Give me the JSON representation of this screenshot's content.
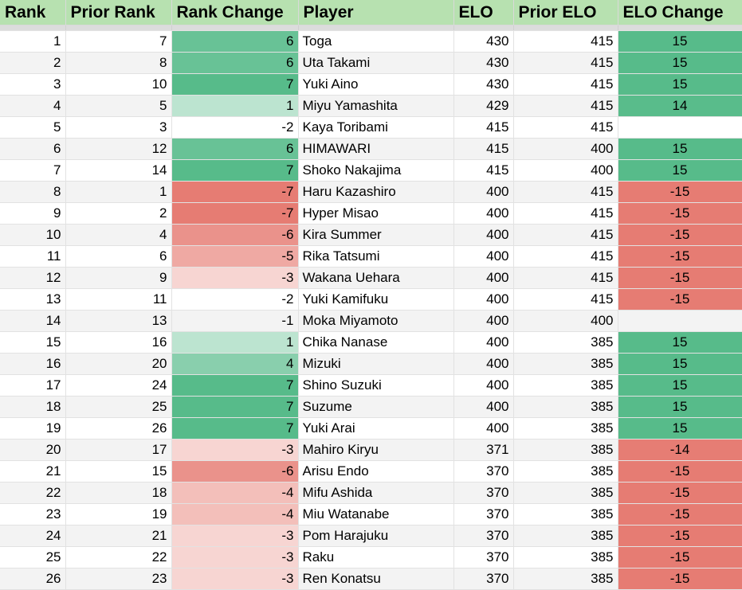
{
  "headers": {
    "rank": "Rank",
    "prior_rank": "Prior Rank",
    "rank_change": "Rank Change",
    "player": "Player",
    "elo": "ELO",
    "prior_elo": "Prior ELO",
    "elo_change": "ELO Change"
  },
  "colors": {
    "header_bg": "#b7e1b0",
    "positive": "#57bb8a",
    "negative": "#e67c73",
    "row_even": "#f3f3f3"
  },
  "rows": [
    {
      "rank": "1",
      "prior_rank": "7",
      "rank_change": "6",
      "player": "Toga",
      "elo": "430",
      "prior_elo": "415",
      "elo_change": "15"
    },
    {
      "rank": "2",
      "prior_rank": "8",
      "rank_change": "6",
      "player": "Uta Takami",
      "elo": "430",
      "prior_elo": "415",
      "elo_change": "15"
    },
    {
      "rank": "3",
      "prior_rank": "10",
      "rank_change": "7",
      "player": "Yuki Aino",
      "elo": "430",
      "prior_elo": "415",
      "elo_change": "15"
    },
    {
      "rank": "4",
      "prior_rank": "5",
      "rank_change": "1",
      "player": "Miyu Yamashita",
      "elo": "429",
      "prior_elo": "415",
      "elo_change": "14"
    },
    {
      "rank": "5",
      "prior_rank": "3",
      "rank_change": "-2",
      "player": "Kaya Toribami",
      "elo": "415",
      "prior_elo": "415",
      "elo_change": ""
    },
    {
      "rank": "6",
      "prior_rank": "12",
      "rank_change": "6",
      "player": "HIMAWARI",
      "elo": "415",
      "prior_elo": "400",
      "elo_change": "15"
    },
    {
      "rank": "7",
      "prior_rank": "14",
      "rank_change": "7",
      "player": "Shoko Nakajima",
      "elo": "415",
      "prior_elo": "400",
      "elo_change": "15"
    },
    {
      "rank": "8",
      "prior_rank": "1",
      "rank_change": "-7",
      "player": "Haru Kazashiro",
      "elo": "400",
      "prior_elo": "415",
      "elo_change": "-15"
    },
    {
      "rank": "9",
      "prior_rank": "2",
      "rank_change": "-7",
      "player": "Hyper Misao",
      "elo": "400",
      "prior_elo": "415",
      "elo_change": "-15"
    },
    {
      "rank": "10",
      "prior_rank": "4",
      "rank_change": "-6",
      "player": "Kira Summer",
      "elo": "400",
      "prior_elo": "415",
      "elo_change": "-15"
    },
    {
      "rank": "11",
      "prior_rank": "6",
      "rank_change": "-5",
      "player": "Rika Tatsumi",
      "elo": "400",
      "prior_elo": "415",
      "elo_change": "-15"
    },
    {
      "rank": "12",
      "prior_rank": "9",
      "rank_change": "-3",
      "player": "Wakana Uehara",
      "elo": "400",
      "prior_elo": "415",
      "elo_change": "-15"
    },
    {
      "rank": "13",
      "prior_rank": "11",
      "rank_change": "-2",
      "player": "Yuki Kamifuku",
      "elo": "400",
      "prior_elo": "415",
      "elo_change": "-15"
    },
    {
      "rank": "14",
      "prior_rank": "13",
      "rank_change": "-1",
      "player": "Moka Miyamoto",
      "elo": "400",
      "prior_elo": "400",
      "elo_change": ""
    },
    {
      "rank": "15",
      "prior_rank": "16",
      "rank_change": "1",
      "player": "Chika Nanase",
      "elo": "400",
      "prior_elo": "385",
      "elo_change": "15"
    },
    {
      "rank": "16",
      "prior_rank": "20",
      "rank_change": "4",
      "player": "Mizuki",
      "elo": "400",
      "prior_elo": "385",
      "elo_change": "15"
    },
    {
      "rank": "17",
      "prior_rank": "24",
      "rank_change": "7",
      "player": "Shino Suzuki",
      "elo": "400",
      "prior_elo": "385",
      "elo_change": "15"
    },
    {
      "rank": "18",
      "prior_rank": "25",
      "rank_change": "7",
      "player": "Suzume",
      "elo": "400",
      "prior_elo": "385",
      "elo_change": "15"
    },
    {
      "rank": "19",
      "prior_rank": "26",
      "rank_change": "7",
      "player": "Yuki Arai",
      "elo": "400",
      "prior_elo": "385",
      "elo_change": "15"
    },
    {
      "rank": "20",
      "prior_rank": "17",
      "rank_change": "-3",
      "player": "Mahiro Kiryu",
      "elo": "371",
      "prior_elo": "385",
      "elo_change": "-14"
    },
    {
      "rank": "21",
      "prior_rank": "15",
      "rank_change": "-6",
      "player": "Arisu Endo",
      "elo": "370",
      "prior_elo": "385",
      "elo_change": "-15"
    },
    {
      "rank": "22",
      "prior_rank": "18",
      "rank_change": "-4",
      "player": "Mifu Ashida",
      "elo": "370",
      "prior_elo": "385",
      "elo_change": "-15"
    },
    {
      "rank": "23",
      "prior_rank": "19",
      "rank_change": "-4",
      "player": "Miu Watanabe",
      "elo": "370",
      "prior_elo": "385",
      "elo_change": "-15"
    },
    {
      "rank": "24",
      "prior_rank": "21",
      "rank_change": "-3",
      "player": "Pom Harajuku",
      "elo": "370",
      "prior_elo": "385",
      "elo_change": "-15"
    },
    {
      "rank": "25",
      "prior_rank": "22",
      "rank_change": "-3",
      "player": "Raku",
      "elo": "370",
      "prior_elo": "385",
      "elo_change": "-15"
    },
    {
      "rank": "26",
      "prior_rank": "23",
      "rank_change": "-3",
      "player": "Ren Konatsu",
      "elo": "370",
      "prior_elo": "385",
      "elo_change": "-15"
    }
  ]
}
